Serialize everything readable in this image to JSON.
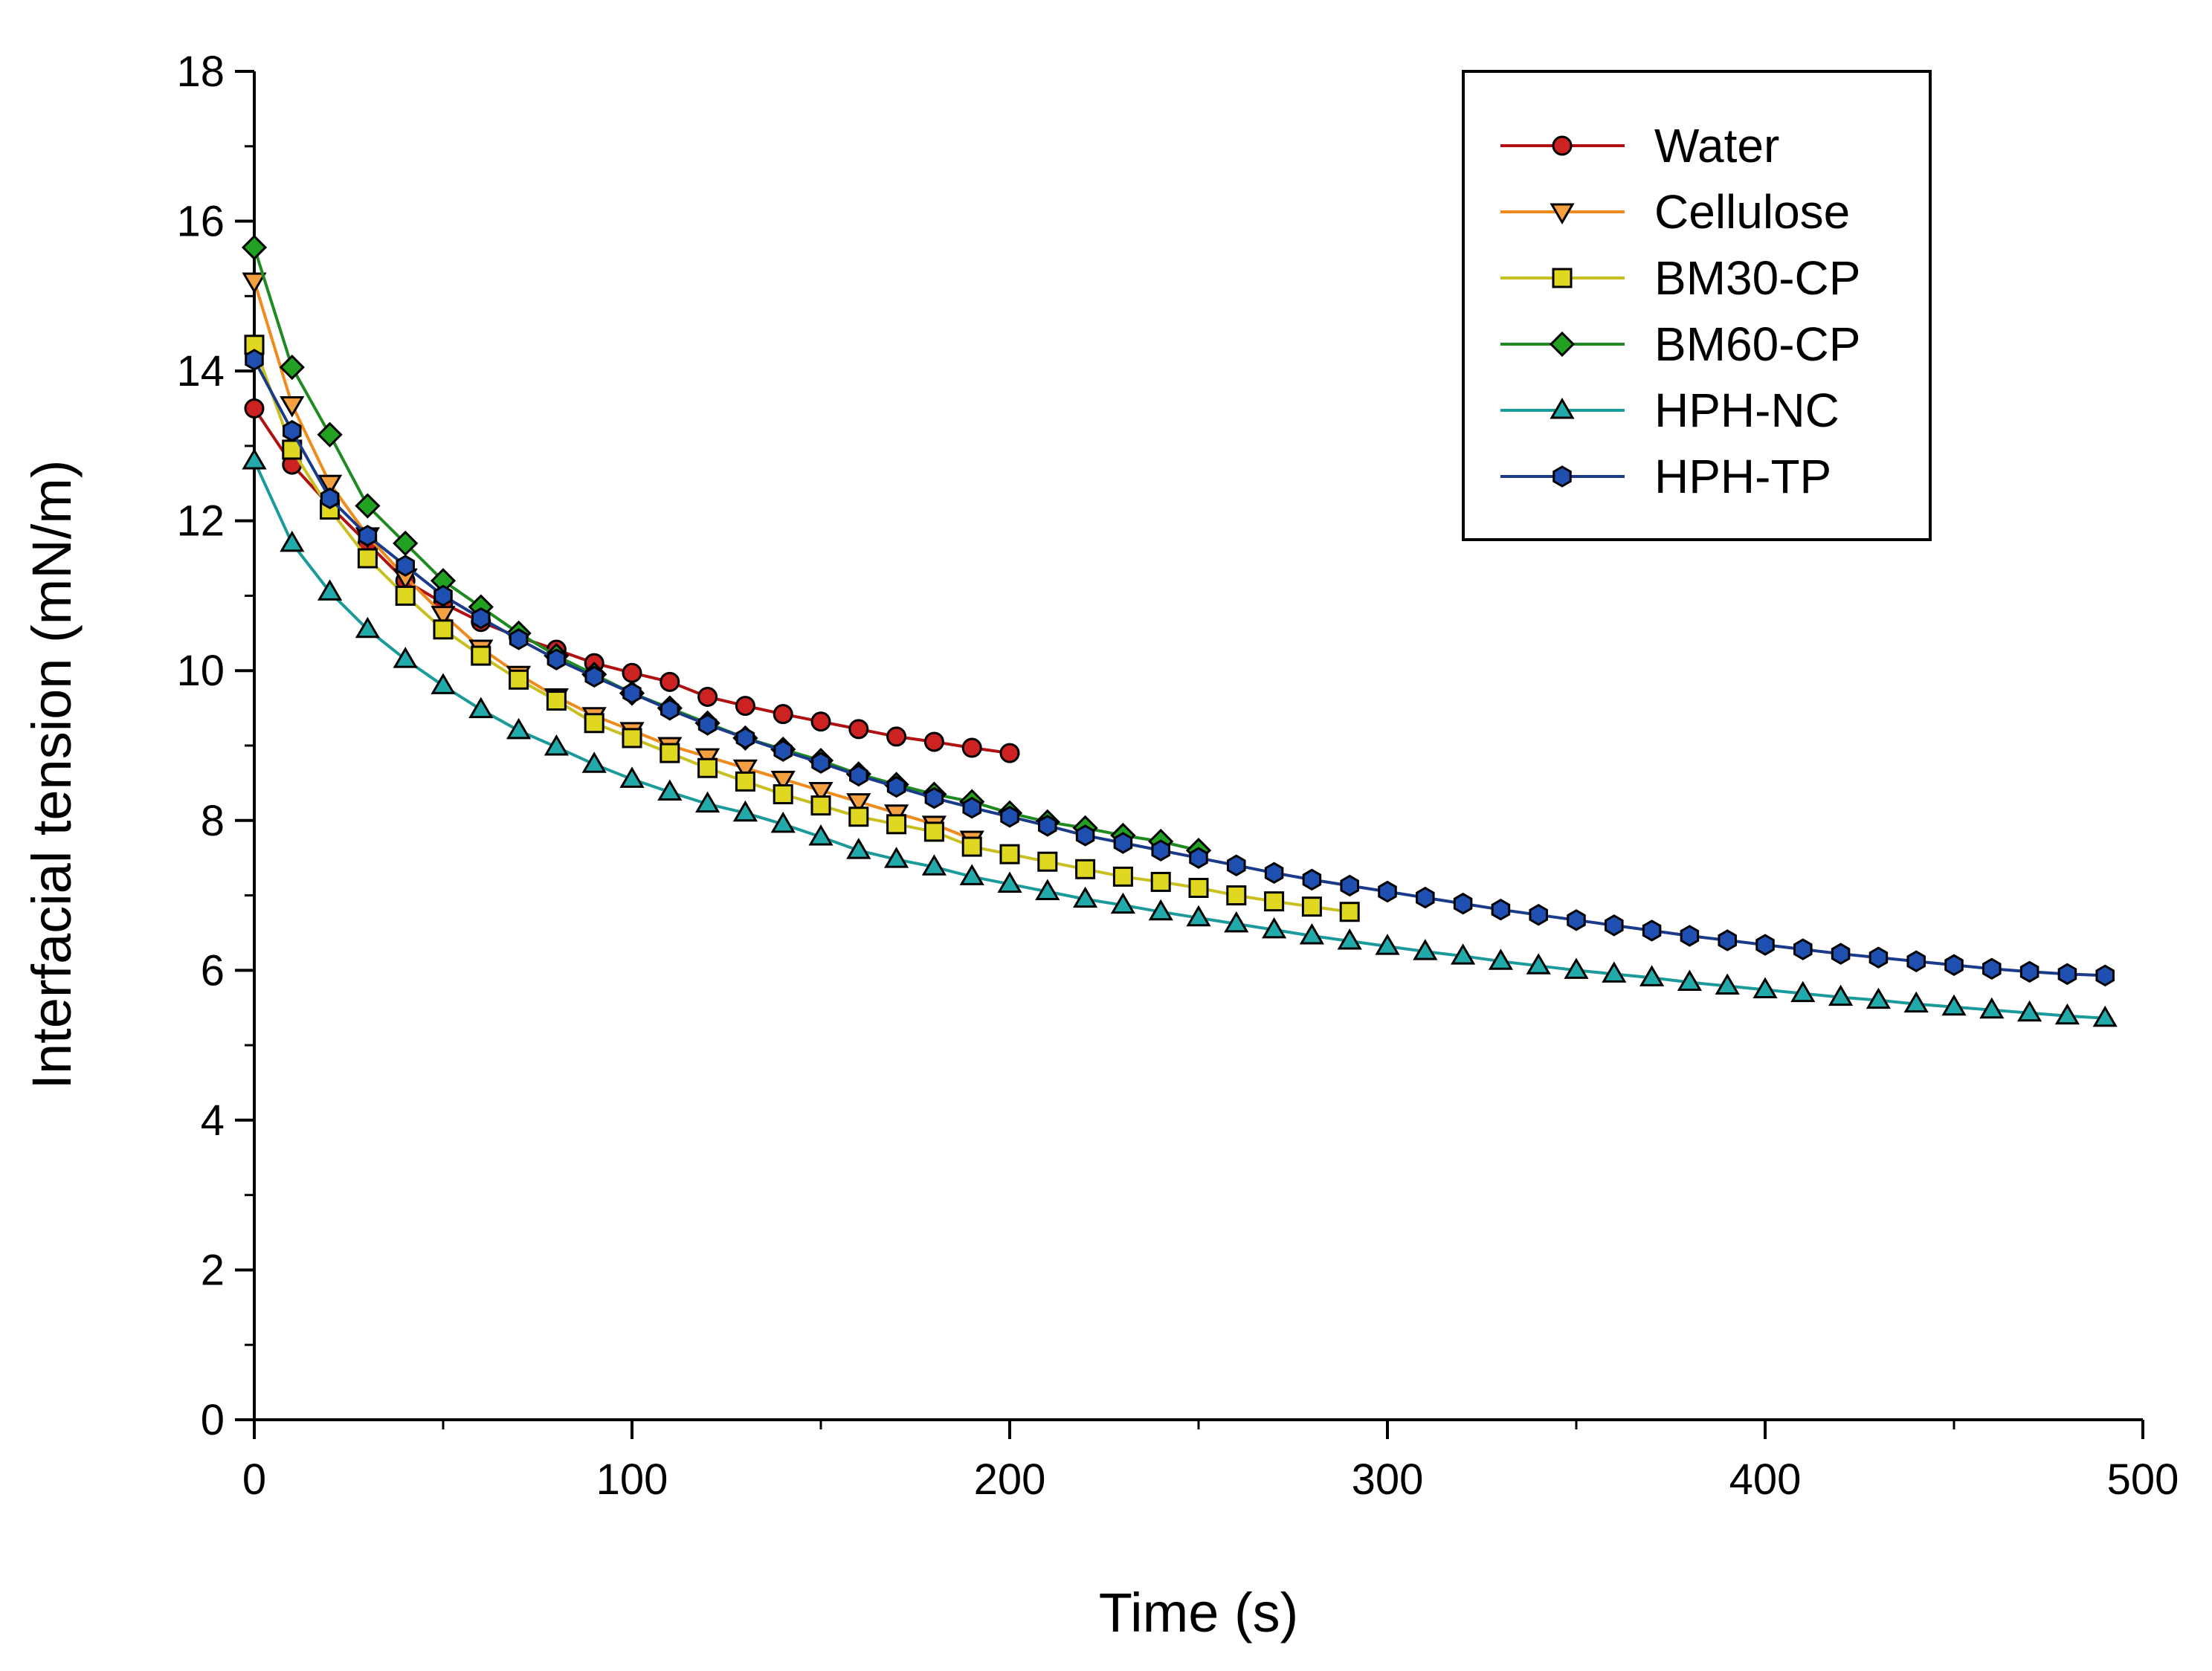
{
  "chart_data": {
    "type": "line",
    "title": "",
    "xlabel": "Time (s)",
    "ylabel": "Interfacial tension (mN/m)",
    "xlim": [
      0,
      500
    ],
    "ylim": [
      0,
      18
    ],
    "xticks": [
      0,
      100,
      200,
      300,
      400,
      500
    ],
    "yticks": [
      0,
      2,
      4,
      6,
      8,
      10,
      12,
      14,
      16,
      18
    ],
    "grid": false,
    "legend_position": "top-right",
    "series": [
      {
        "name": "Water",
        "color": "#b01010",
        "marker_color": "#cc2222",
        "marker": "circle",
        "x": [
          0,
          10,
          20,
          30,
          40,
          50,
          60,
          70,
          80,
          90,
          100,
          110,
          120,
          130,
          140,
          150,
          160,
          170,
          180,
          190,
          200
        ],
        "y": [
          13.5,
          12.75,
          12.2,
          11.7,
          11.2,
          10.9,
          10.65,
          10.45,
          10.28,
          10.1,
          9.97,
          9.85,
          9.65,
          9.53,
          9.42,
          9.32,
          9.22,
          9.12,
          9.05,
          8.97,
          8.9
        ]
      },
      {
        "name": "Cellulose",
        "color": "#f08a1c",
        "marker_color": "#f4a040",
        "marker": "triangle-down",
        "x": [
          0,
          10,
          20,
          30,
          40,
          50,
          60,
          70,
          80,
          90,
          100,
          110,
          120,
          130,
          140,
          150,
          160,
          170,
          180,
          190
        ],
        "y": [
          15.2,
          13.55,
          12.5,
          11.8,
          11.25,
          10.75,
          10.3,
          9.95,
          9.65,
          9.4,
          9.2,
          9.0,
          8.85,
          8.7,
          8.55,
          8.4,
          8.25,
          8.1,
          7.95,
          7.75
        ]
      },
      {
        "name": "BM30-CP",
        "color": "#c8c020",
        "marker_color": "#e0d820",
        "marker": "square",
        "x": [
          0,
          10,
          20,
          30,
          40,
          50,
          60,
          70,
          80,
          90,
          100,
          110,
          120,
          130,
          140,
          150,
          160,
          170,
          180,
          190,
          200,
          210,
          220,
          230,
          240,
          250,
          260,
          270,
          280,
          290
        ],
        "y": [
          14.35,
          12.95,
          12.15,
          11.5,
          11.0,
          10.55,
          10.2,
          9.88,
          9.6,
          9.3,
          9.1,
          8.9,
          8.7,
          8.52,
          8.35,
          8.2,
          8.05,
          7.95,
          7.85,
          7.65,
          7.55,
          7.45,
          7.35,
          7.25,
          7.18,
          7.1,
          7.0,
          6.92,
          6.85,
          6.78
        ]
      },
      {
        "name": "BM60-CP",
        "color": "#1f8a1f",
        "marker_color": "#22a022",
        "marker": "diamond",
        "x": [
          0,
          10,
          20,
          30,
          40,
          50,
          60,
          70,
          80,
          90,
          100,
          110,
          120,
          130,
          140,
          150,
          160,
          170,
          180,
          190,
          200,
          210,
          220,
          230,
          240,
          250
        ],
        "y": [
          15.65,
          14.05,
          13.15,
          12.2,
          11.7,
          11.2,
          10.85,
          10.5,
          10.2,
          9.95,
          9.7,
          9.5,
          9.3,
          9.1,
          8.95,
          8.8,
          8.62,
          8.48,
          8.35,
          8.25,
          8.1,
          7.98,
          7.9,
          7.8,
          7.72,
          7.6
        ]
      },
      {
        "name": "HPH-NC",
        "color": "#1a9a9a",
        "marker_color": "#22aaaa",
        "marker": "triangle-up",
        "x": [
          0,
          10,
          20,
          30,
          40,
          50,
          60,
          70,
          80,
          90,
          100,
          110,
          120,
          130,
          140,
          150,
          160,
          170,
          180,
          190,
          200,
          210,
          220,
          230,
          240,
          250,
          260,
          270,
          280,
          290,
          300,
          310,
          320,
          330,
          340,
          350,
          360,
          370,
          380,
          390,
          400,
          410,
          420,
          430,
          440,
          450,
          460,
          470,
          480,
          490
        ],
        "y": [
          12.8,
          11.7,
          11.05,
          10.55,
          10.15,
          9.8,
          9.48,
          9.2,
          8.98,
          8.75,
          8.55,
          8.38,
          8.22,
          8.1,
          7.95,
          7.78,
          7.6,
          7.48,
          7.38,
          7.25,
          7.15,
          7.05,
          6.95,
          6.87,
          6.78,
          6.7,
          6.62,
          6.54,
          6.46,
          6.39,
          6.32,
          6.25,
          6.19,
          6.12,
          6.06,
          6.0,
          5.95,
          5.9,
          5.84,
          5.79,
          5.74,
          5.69,
          5.64,
          5.6,
          5.55,
          5.51,
          5.47,
          5.43,
          5.39,
          5.36
        ]
      },
      {
        "name": "HPH-TP",
        "color": "#1a3a8a",
        "marker_color": "#1f4fb0",
        "marker": "hexagon",
        "x": [
          0,
          10,
          20,
          30,
          40,
          50,
          60,
          70,
          80,
          90,
          100,
          110,
          120,
          130,
          140,
          150,
          160,
          170,
          180,
          190,
          200,
          210,
          220,
          230,
          240,
          250,
          260,
          270,
          280,
          290,
          300,
          310,
          320,
          330,
          340,
          350,
          360,
          370,
          380,
          390,
          400,
          410,
          420,
          430,
          440,
          450,
          460,
          470,
          480,
          490
        ],
        "y": [
          14.15,
          13.2,
          12.3,
          11.8,
          11.4,
          11.0,
          10.7,
          10.42,
          10.15,
          9.92,
          9.7,
          9.48,
          9.28,
          9.1,
          8.93,
          8.77,
          8.6,
          8.45,
          8.3,
          8.17,
          8.05,
          7.93,
          7.8,
          7.7,
          7.6,
          7.5,
          7.4,
          7.3,
          7.21,
          7.13,
          7.05,
          6.97,
          6.89,
          6.81,
          6.74,
          6.67,
          6.6,
          6.53,
          6.46,
          6.4,
          6.34,
          6.28,
          6.22,
          6.17,
          6.12,
          6.07,
          6.02,
          5.98,
          5.95,
          5.93
        ]
      }
    ]
  }
}
